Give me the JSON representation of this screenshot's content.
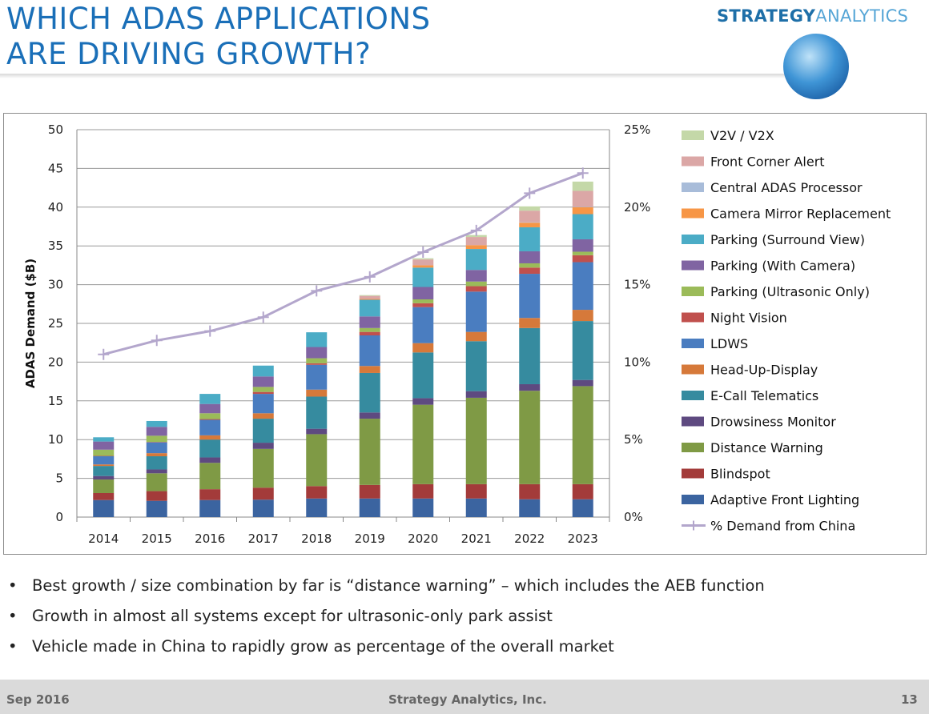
{
  "slide": {
    "title_line1": "WHICH ADAS APPLICATIONS",
    "title_line2": "ARE DRIVING GROWTH?",
    "brand_part1": "STRATEGY",
    "brand_part2": "ANALYTICS",
    "bullets": [
      "Best growth / size combination by far is “distance warning” – which includes the AEB function",
      "Growth in almost all systems except for ultrasonic-only park assist",
      "Vehicle made in China to rapidly grow as percentage of the overall market"
    ],
    "footer_date": "Sep 2016",
    "footer_company": "Strategy Analytics, Inc.",
    "page_number": "13"
  },
  "chart_data": {
    "type": "bar",
    "stacked": true,
    "categories": [
      "2014",
      "2015",
      "2016",
      "2017",
      "2018",
      "2019",
      "2020",
      "2021",
      "2022",
      "2023"
    ],
    "ylabel": "ADAS Demand ($B)",
    "ylim": [
      0,
      50
    ],
    "yticks": [
      "0",
      "5",
      "10",
      "15",
      "20",
      "25",
      "30",
      "35",
      "40",
      "45",
      "50"
    ],
    "y2lim": [
      0,
      25
    ],
    "y2ticks": [
      "0%",
      "5%",
      "10%",
      "15%",
      "20%",
      "25%"
    ],
    "grid": true,
    "legend_position": "right",
    "series": [
      {
        "name": "Adaptive Front Lighting",
        "color": "#3b64a0",
        "values": [
          2.2,
          2.1,
          2.2,
          2.25,
          2.4,
          2.4,
          2.4,
          2.4,
          2.3,
          2.3
        ]
      },
      {
        "name": "Blindspot",
        "color": "#a33b3a",
        "values": [
          0.9,
          1.25,
          1.4,
          1.55,
          1.6,
          1.75,
          1.85,
          1.85,
          1.95,
          1.95
        ]
      },
      {
        "name": "Distance Warning",
        "color": "#7f9a45",
        "values": [
          1.75,
          2.3,
          3.4,
          5.0,
          6.7,
          8.55,
          10.25,
          11.15,
          12.05,
          12.65
        ]
      },
      {
        "name": "Drowsiness Monitor",
        "color": "#5e4a80",
        "values": [
          0.45,
          0.5,
          0.7,
          0.8,
          0.7,
          0.8,
          0.85,
          0.85,
          0.85,
          0.8
        ]
      },
      {
        "name": "E-Call Telematics",
        "color": "#368b9f",
        "values": [
          1.3,
          1.7,
          2.3,
          3.1,
          4.15,
          5.1,
          5.9,
          6.45,
          7.25,
          7.6
        ]
      },
      {
        "name": "Head-Up-Display",
        "color": "#d6793a",
        "values": [
          0.2,
          0.4,
          0.55,
          0.7,
          0.9,
          0.9,
          1.2,
          1.2,
          1.3,
          1.45
        ]
      },
      {
        "name": "LDWS",
        "color": "#4a7dc0",
        "values": [
          1.05,
          1.4,
          2.0,
          2.5,
          3.2,
          3.95,
          4.65,
          5.2,
          5.7,
          6.15
        ]
      },
      {
        "name": "Night Vision",
        "color": "#c0504d",
        "values": [
          0.05,
          0.05,
          0.1,
          0.25,
          0.2,
          0.45,
          0.5,
          0.7,
          0.8,
          0.9
        ]
      },
      {
        "name": "Parking (Ultrasonic Only)",
        "color": "#9bbb59",
        "values": [
          0.8,
          0.8,
          0.75,
          0.65,
          0.65,
          0.5,
          0.5,
          0.6,
          0.55,
          0.45
        ]
      },
      {
        "name": "Parking (With Camera)",
        "color": "#8064a2",
        "values": [
          1.05,
          1.15,
          1.2,
          1.35,
          1.45,
          1.5,
          1.6,
          1.5,
          1.55,
          1.6
        ]
      },
      {
        "name": "Parking (Surround View)",
        "color": "#4bacc6",
        "values": [
          0.55,
          0.75,
          1.3,
          1.4,
          1.9,
          2.15,
          2.5,
          2.7,
          3.1,
          3.25
        ]
      },
      {
        "name": "Camera Mirror Replacement",
        "color": "#f79646",
        "values": [
          0,
          0,
          0,
          0,
          0,
          0.1,
          0.3,
          0.5,
          0.6,
          0.9
        ]
      },
      {
        "name": "Central ADAS Processor",
        "color": "#a8bcd9",
        "values": [
          0,
          0,
          0,
          0,
          0,
          0,
          0,
          0,
          0.05,
          0.05
        ]
      },
      {
        "name": "Front Corner Alert",
        "color": "#dba7a6",
        "values": [
          0,
          0,
          0,
          0,
          0,
          0.4,
          0.75,
          1.05,
          1.5,
          2.05
        ]
      },
      {
        "name": "V2V / V2X",
        "color": "#c4d8a8",
        "values": [
          0,
          0,
          0,
          0,
          0,
          0.1,
          0.15,
          0.25,
          0.55,
          1.2
        ]
      }
    ],
    "line_series": {
      "name": "% Demand from China",
      "color": "#b3a6cc",
      "axis": "right",
      "values": [
        10.5,
        11.4,
        12.0,
        12.9,
        14.6,
        15.5,
        17.1,
        18.5,
        20.9,
        22.2
      ]
    }
  }
}
